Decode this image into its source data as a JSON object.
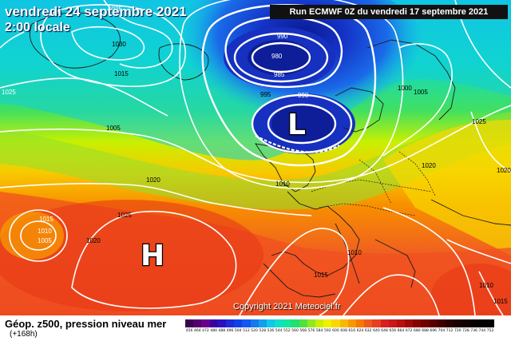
{
  "title": "vendredi 24 septembre 2021",
  "subtitle": "2:00 locale",
  "run": "Run ECMWF 0Z du vendredi 17 septembre 2021",
  "copyright": "Copyright 2021 Meteociel.fr",
  "legend": {
    "title": "Géop. z500, pression niveau mer",
    "sub": "(+168h)",
    "colors": [
      "#3b0050",
      "#54006e",
      "#6b008c",
      "#3a00a0",
      "#2a10c0",
      "#1a2bd8",
      "#1040e8",
      "#1058f0",
      "#1878f0",
      "#10a0f0",
      "#10c8e8",
      "#10e0c8",
      "#10e8a0",
      "#20e070",
      "#50e040",
      "#90e820",
      "#c8f000",
      "#f0f000",
      "#f8d800",
      "#f8b800",
      "#f89800",
      "#f87800",
      "#f05820",
      "#e84020",
      "#d82020",
      "#c81818",
      "#b81010",
      "#a00808",
      "#880000",
      "#700000",
      "#580000",
      "#400000",
      "#280000",
      "#180000",
      "#100000",
      "#080000",
      "#040000",
      "#020000"
    ],
    "values": [
      "456",
      "464",
      "472",
      "480",
      "488",
      "496",
      "504",
      "512",
      "520",
      "528",
      "536",
      "544",
      "552",
      "560",
      "568",
      "576",
      "584",
      "592",
      "600",
      "608",
      "616",
      "624",
      "632",
      "640",
      "648",
      "656",
      "664",
      "672",
      "680",
      "688",
      "696",
      "704",
      "712",
      "720",
      "728",
      "736",
      "744",
      "752"
    ]
  },
  "pressure_labels": [
    {
      "text": "1025",
      "k": "a"
    },
    {
      "text": "1030",
      "k": "b"
    },
    {
      "text": "1015",
      "k": "c"
    },
    {
      "text": "1025",
      "k": "d"
    },
    {
      "text": "1005",
      "k": "e"
    },
    {
      "text": "990",
      "k": "f"
    },
    {
      "text": "980",
      "k": "g"
    },
    {
      "text": "985",
      "k": "h"
    },
    {
      "text": "995",
      "k": "i"
    },
    {
      "text": "990",
      "k": "j"
    },
    {
      "text": "1000",
      "k": "k"
    },
    {
      "text": "1005",
      "k": "l"
    },
    {
      "text": "1025",
      "k": "m"
    },
    {
      "text": "1020",
      "k": "n"
    },
    {
      "text": "1020",
      "k": "o"
    },
    {
      "text": "1010",
      "k": "p"
    },
    {
      "text": "1020",
      "k": "q"
    },
    {
      "text": "1015",
      "k": "r"
    },
    {
      "text": "1010",
      "k": "s"
    },
    {
      "text": "1005",
      "k": "t"
    },
    {
      "text": "1025",
      "k": "u"
    },
    {
      "text": "1020",
      "k": "v"
    },
    {
      "text": "1010",
      "k": "w"
    },
    {
      "text": "1015",
      "k": "x"
    },
    {
      "text": "1010",
      "k": "y"
    },
    {
      "text": "1015",
      "k": "z"
    }
  ],
  "centers": {
    "low": "L",
    "high": "H"
  }
}
